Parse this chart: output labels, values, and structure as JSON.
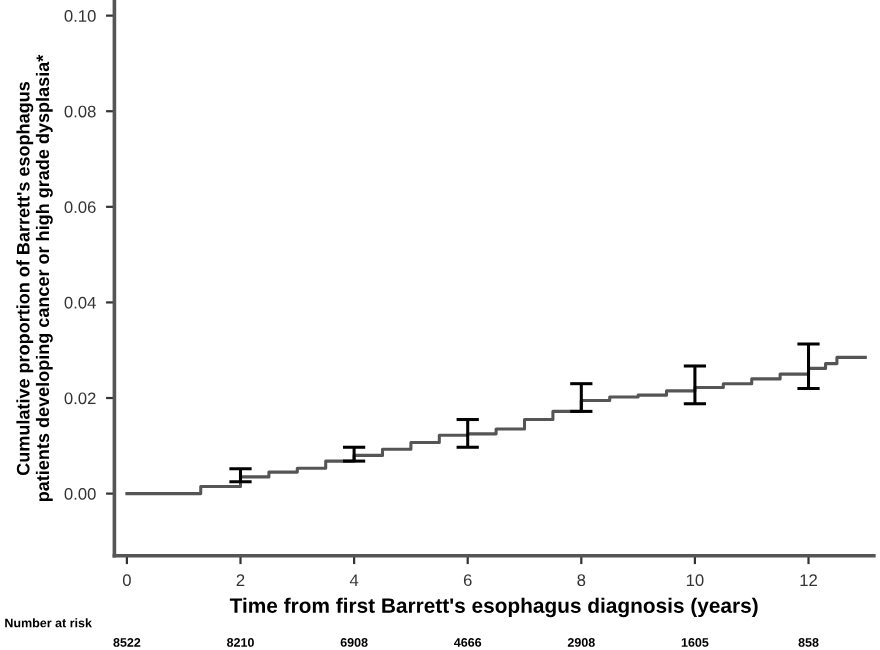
{
  "chart_data": {
    "type": "step",
    "xlabel": "Time from first Barrett's esophagus diagnosis (years)",
    "ylabel": "Cumulative proportion of Barrett's esophagus\npatients developing cancer or high grade dysplasia*",
    "series": [
      {
        "color": "#555555",
        "x": [
          0,
          1.0,
          1.3,
          2.0,
          2.5,
          3.0,
          3.5,
          4.0,
          4.5,
          5.0,
          5.5,
          6.0,
          6.5,
          7.0,
          7.5,
          8.0,
          8.5,
          9.0,
          9.5,
          10.0,
          10.5,
          11.0,
          11.5,
          12.0,
          12.3,
          12.5,
          13.0
        ],
        "values": [
          0,
          0,
          0.0015,
          0.0035,
          0.0045,
          0.0053,
          0.0068,
          0.008,
          0.0093,
          0.0107,
          0.0122,
          0.0125,
          0.0135,
          0.0155,
          0.0172,
          0.0195,
          0.0202,
          0.0206,
          0.0215,
          0.0222,
          0.023,
          0.024,
          0.025,
          0.0262,
          0.0272,
          0.0285,
          0.0285
        ],
        "errors": [
          null,
          null,
          null,
          [
            0.0025,
            0.0052
          ],
          null,
          null,
          null,
          [
            0.0068,
            0.0097
          ],
          null,
          null,
          null,
          [
            0.0097,
            0.0155
          ],
          null,
          null,
          null,
          [
            0.0172,
            0.023
          ],
          null,
          null,
          null,
          [
            0.0188,
            0.0267
          ],
          null,
          null,
          null,
          [
            0.022,
            0.0313
          ],
          null,
          null,
          null
        ]
      }
    ],
    "xlim": [
      -0.22,
      13.15
    ],
    "ylim": [
      -0.013,
      0.103
    ],
    "xticks": [
      0,
      2,
      4,
      6,
      8,
      10,
      12
    ],
    "yticks": [
      {
        "value": 0,
        "label": "0.00"
      },
      {
        "value": 0.02,
        "label": "0.02"
      },
      {
        "value": 0.04,
        "label": "0.04"
      },
      {
        "value": 0.06,
        "label": "0.06"
      },
      {
        "value": 0.08,
        "label": "0.08"
      },
      {
        "value": 0.1,
        "label": "0.10"
      }
    ],
    "annotations": [
      "Number at risk",
      "8522",
      "8210",
      "6908",
      "4666",
      "2908",
      "1605",
      "858"
    ],
    "grid": false,
    "line_style": "solid",
    "marker": "none"
  }
}
